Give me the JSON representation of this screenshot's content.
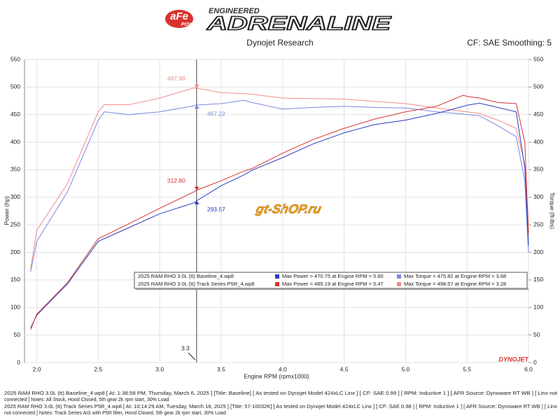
{
  "header": {
    "brand": "aFe",
    "brand_sub": "POWER",
    "tagline": "ENGINEERED",
    "title": "ADRENALINE"
  },
  "chart_data": {
    "type": "line",
    "title": "Dynojet Research",
    "subtitle": "CF: SAE Smoothing: 5",
    "x_label": "Engine RPM (rpmx1000)",
    "y_label": "Power (hp)",
    "y2_label": "Torque (ft-lbs)",
    "x": [
      1.95,
      2.0,
      2.25,
      2.5,
      2.55,
      2.75,
      3.0,
      3.28,
      3.3,
      3.5,
      3.68,
      3.75,
      4.0,
      4.25,
      4.5,
      4.75,
      5.0,
      5.25,
      5.47,
      5.5,
      5.6,
      5.75,
      5.9,
      5.97,
      6.0
    ],
    "series": [
      {
        "color": "#7b87e2",
        "axis": "y2",
        "values": [
          165,
          220,
          310,
          440,
          455,
          450,
          455,
          466,
          467.22,
          470,
          475.82,
          472,
          460,
          463,
          465,
          463,
          462,
          455,
          451,
          450,
          448,
          430,
          410,
          330,
          200
        ]
      },
      {
        "color": "#f08c8a",
        "axis": "y2",
        "values": [
          170,
          240,
          325,
          455,
          468,
          468,
          480,
          498.57,
          497.98,
          490,
          488,
          487,
          480,
          479,
          478,
          474,
          470,
          462,
          456,
          455,
          452,
          440,
          425,
          360,
          230
        ]
      },
      {
        "color": "#2b3cc0",
        "values": [
          63,
          86,
          143,
          220,
          225,
          245,
          270,
          290,
          293.57,
          321,
          340,
          349,
          372,
          397,
          417,
          432,
          440,
          452,
          465,
          467,
          470.75,
          463,
          455,
          353,
          213
        ]
      },
      {
        "color": "#d8322e",
        "values": [
          60,
          88,
          145,
          225,
          230,
          252,
          280,
          310,
          312.8,
          330,
          347,
          352,
          380,
          405,
          425,
          442,
          455,
          465,
          485.19,
          483,
          480,
          472,
          470,
          400,
          235
        ]
      }
    ],
    "xlim": [
      1.9,
      6.0
    ],
    "xticks": [
      {
        "value": 2,
        "label": "2.0"
      },
      {
        "value": 2.5,
        "label": "2.5"
      },
      {
        "value": 3,
        "label": "3.0"
      },
      {
        "value": 3.5,
        "label": "3.5"
      },
      {
        "value": 4,
        "label": "4.0"
      },
      {
        "value": 4.5,
        "label": "4.5"
      },
      {
        "value": 5,
        "label": "5.0"
      },
      {
        "value": 5.5,
        "label": "5.5"
      },
      {
        "value": 6,
        "label": "6.0"
      }
    ],
    "ylim": [
      0,
      550
    ],
    "yticks": [
      0,
      50,
      100,
      150,
      200,
      250,
      300,
      350,
      400,
      450,
      500,
      550
    ],
    "y2lim": [
      0,
      550
    ],
    "y2ticks": [
      0,
      50,
      100,
      150,
      200,
      250,
      300,
      350,
      400,
      450,
      500,
      550
    ],
    "grid": true,
    "cursor": {
      "x": 3.3,
      "label": "3.3"
    },
    "annotations": [
      {
        "x": 3.3,
        "y": 497.98,
        "label": "497.98",
        "color": "#f08c8a",
        "axis": "y2"
      },
      {
        "x": 3.3,
        "y": 467.22,
        "label": "467.22",
        "color": "#7b87e2",
        "axis": "y2"
      },
      {
        "x": 3.3,
        "y": 312.8,
        "label": "312.80",
        "color": "#d8322e"
      },
      {
        "x": 3.3,
        "y": 293.57,
        "label": "293.57",
        "color": "#2b3cc0"
      }
    ],
    "legend_rows": [
      {
        "run": "2025 RAM RHO 3.0L (tt) Baseline_4.wp8",
        "max_power": "Max Power = 470.75 at Engine RPM = 5.60",
        "power_color": "#2b3cc0",
        "max_torque": "Max Torque = 475.82 at Engine RPM = 3.68",
        "torque_color": "#7b87e2"
      },
      {
        "run": "2025 RAM RHO 3.0L (tt) Track Series P5R_4.wp8",
        "max_power": "Max Power = 485.19 at Engine RPM = 5.47",
        "power_color": "#d8322e",
        "max_torque": "Max Torque = 498.57 at Engine RPM = 3.28",
        "torque_color": "#f08c8a"
      }
    ],
    "watermark": "gt-ShOP.ru",
    "logo": "DYNOJET"
  },
  "footnotes": [
    [
      "2025 RAM RHO 3.0L (tt) Baseline_4.wp8 [ At: 1:38:58 PM, Thursday, March 6, 2025 ] [Title: Baseline]  [ As tested on Dynojet Model 424xLC Linx ]  [ CF: SAE 0.99 ] [ RPM: Inductive 1 ]  [ AFR Source: Dynoware RT WB ]  [ Linx not",
      "connected ] Notes: All Stock, Hood Closed, 5th gear 2k rpm start, 30% Load"
    ],
    [
      "2025 RAM RHO 3.0L (tt) Track Series P5R_4.wp8 [ At: 10:14:29 AM, Tuesday, March 18, 2025 ] [Title: 57-10032K]  [ As tested on Dynojet Model 424xLC Linx ]  [ CF: SAE 0.98 ] [ RPM: Inductive 1 ]  [ AFR Source: Dynoware RT WB ]  [ Linx",
      "not connected ] Notes: Track Series AIS with P5R filter, Hood Closed, 5th gear 2k rpm start, 30% Load"
    ]
  ]
}
